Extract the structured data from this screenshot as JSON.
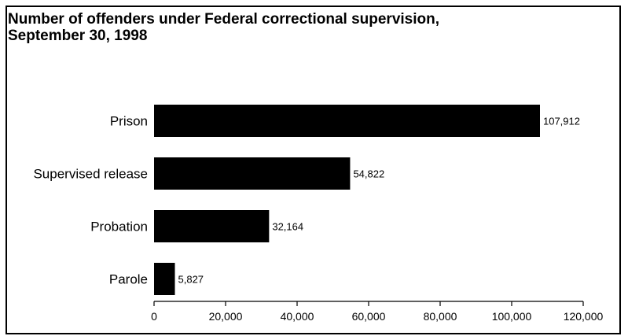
{
  "chart_data": {
    "type": "bar",
    "orientation": "horizontal",
    "title": "Number of offenders under Federal correctional supervision,",
    "subtitle": "September 30, 1998",
    "xlabel": "",
    "ylabel": "",
    "categories": [
      "Prison",
      "Supervised release",
      "Probation",
      "Parole"
    ],
    "values": [
      107912,
      54822,
      32164,
      5827
    ],
    "data_labels": [
      "107,912",
      "54,822",
      "32,164",
      "5,827"
    ],
    "xlim": [
      0,
      120000
    ],
    "xticks": [
      0,
      20000,
      40000,
      60000,
      80000,
      100000,
      120000
    ],
    "xtick_labels": [
      "0",
      "20,000",
      "40,000",
      "60,000",
      "80,000",
      "100,000",
      "120,000"
    ],
    "grid": false,
    "legend": "none",
    "bar_color": "#000000"
  }
}
